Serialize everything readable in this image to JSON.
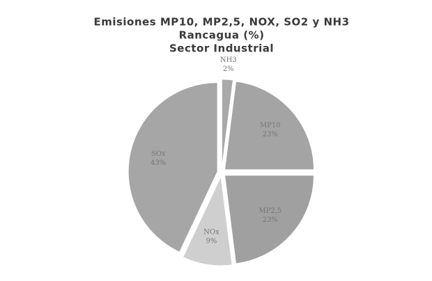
{
  "chart_data": {
    "type": "pie",
    "title": [
      "Emisiones MP10, MP2,5, NOX, SO2 y NH3",
      "Rancagua (%)",
      "Sector Industrial"
    ],
    "categories": [
      "NH3",
      "MP10",
      "MP2,5",
      "NOx",
      "SOx"
    ],
    "values": [
      2,
      23,
      23,
      9,
      43
    ],
    "value_labels": [
      "2%",
      "23%",
      "23%",
      "9%",
      "43%"
    ],
    "colors": [
      "#a9a9a9",
      "#a4a4a4",
      "#a0a0a0",
      "#cfcfcf",
      "#a6a6a6"
    ]
  }
}
